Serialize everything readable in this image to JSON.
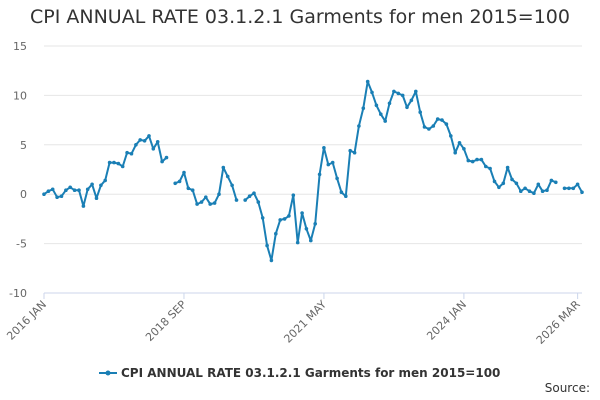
{
  "chart_data": {
    "type": "line",
    "title": "CPI ANNUAL RATE 03.1.2.1 Garments for men 2015=100",
    "xlabel": "",
    "ylabel": "",
    "ylim": [
      -10,
      15
    ],
    "yticks": [
      "15",
      "10",
      "5",
      "0",
      "-5",
      "-10"
    ],
    "xticks": [
      "2016 JAN",
      "2018 SEP",
      "2021 MAY",
      "2024 JAN",
      "2026 MAR"
    ],
    "grid": true,
    "legend_position": "bottom",
    "series": [
      {
        "name": "CPI ANNUAL RATE 03.1.2.1 Garments for men 2015=100",
        "color": "#1a7fb5",
        "start": "2016-01",
        "values": [
          0.0,
          0.3,
          0.5,
          -0.3,
          -0.2,
          0.4,
          0.7,
          0.4,
          0.4,
          -1.2,
          0.5,
          1.0,
          -0.4,
          0.9,
          1.4,
          3.2,
          3.2,
          3.1,
          2.8,
          4.2,
          4.1,
          5.0,
          5.5,
          5.4,
          5.9,
          4.6,
          5.3,
          3.3,
          3.7,
          null,
          1.1,
          1.3,
          2.2,
          0.6,
          0.4,
          -1.0,
          -0.8,
          -0.3,
          -1.0,
          -0.9,
          0.0,
          2.7,
          1.8,
          0.9,
          -0.6,
          null,
          -0.6,
          -0.2,
          0.1,
          -0.8,
          -2.4,
          -5.2,
          -6.7,
          -4.0,
          -2.6,
          -2.5,
          -2.2,
          -0.1,
          -4.9,
          -1.9,
          -3.5,
          -4.7,
          -3.0,
          2.0,
          4.7,
          3.0,
          3.2,
          1.6,
          0.2,
          -0.2,
          4.4,
          4.2,
          6.9,
          8.7,
          11.4,
          10.3,
          9.0,
          8.1,
          7.4,
          9.2,
          10.4,
          10.2,
          10.0,
          8.8,
          9.5,
          10.4,
          8.3,
          6.8,
          6.6,
          6.9,
          7.6,
          7.5,
          7.1,
          5.9,
          4.2,
          5.2,
          4.6,
          3.4,
          3.3,
          3.5,
          3.5,
          2.8,
          2.6,
          1.3,
          0.7,
          1.1,
          2.7,
          1.5,
          1.1,
          0.3,
          0.6,
          0.3,
          0.1,
          1.0,
          0.3,
          0.4,
          1.4,
          1.2,
          null,
          0.6,
          0.6,
          0.6,
          1.0,
          0.2
        ]
      }
    ]
  },
  "footer": {
    "source_label": "Source:"
  }
}
